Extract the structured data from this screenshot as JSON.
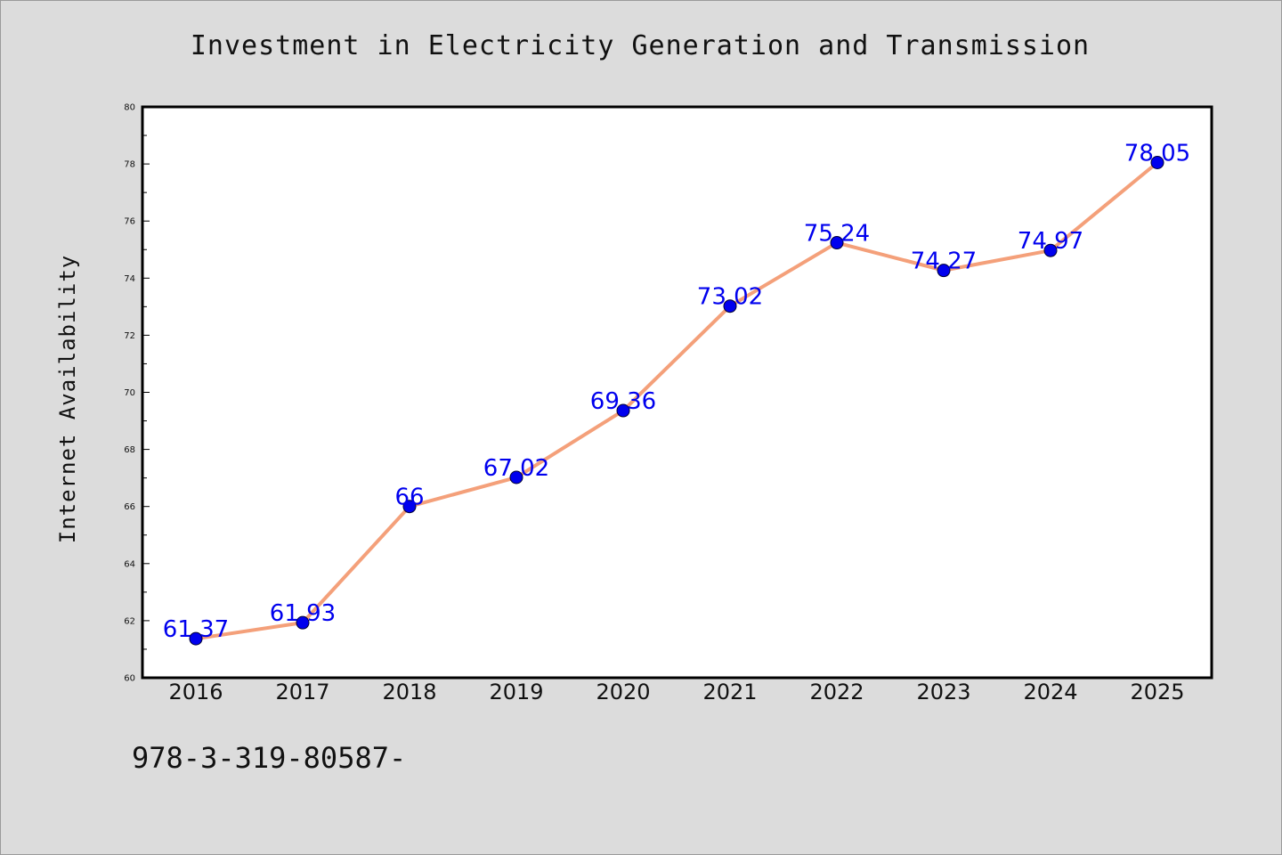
{
  "chart_data": {
    "type": "line",
    "title": "Investment in Electricity Generation and Transmission",
    "xlabel": "",
    "ylabel": "Internet Availability",
    "categories": [
      "2016",
      "2017",
      "2018",
      "2019",
      "2020",
      "2021",
      "2022",
      "2023",
      "2024",
      "2025"
    ],
    "series": [
      {
        "values": [
          61.37,
          61.93,
          66,
          67.02,
          69.36,
          73.02,
          75.24,
          74.27,
          74.97,
          78.05
        ],
        "data_labels": [
          "61.37",
          "61.93",
          "66",
          "67.02",
          "69.36",
          "73.02",
          "75.24",
          "74.27",
          "74.97",
          "78.05"
        ]
      }
    ],
    "ylim": [
      60,
      80
    ],
    "y_ticks": [
      "60",
      "62",
      "64",
      "66",
      "68",
      "70",
      "72",
      "74",
      "76",
      "78",
      "80"
    ],
    "grid": false,
    "legend": "none",
    "colors": {
      "line": "#f4a07a",
      "marker": "#0000ee",
      "label": "#0000ee",
      "background": "#dcdcdc",
      "plot_background": "#ffffff"
    }
  },
  "footer_text": "978-3-319-80587-"
}
